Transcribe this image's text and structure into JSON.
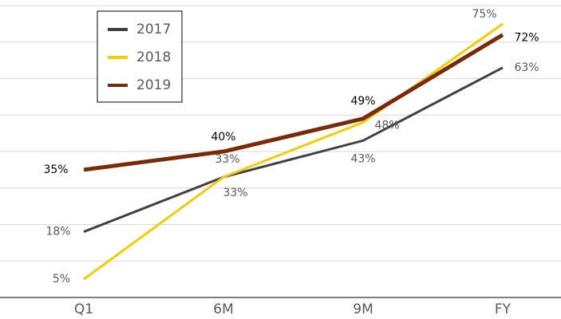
{
  "chart_data": {
    "type": "line",
    "categories": [
      "Q1",
      "6M",
      "9M",
      "FY"
    ],
    "ylim": [
      0,
      80
    ],
    "yticks": [
      0,
      10,
      20,
      30,
      40,
      50,
      60,
      70,
      80
    ],
    "grid": true,
    "series": [
      {
        "name": "2017",
        "color": "#404040",
        "values": [
          18,
          33,
          43,
          63
        ],
        "value_labels": [
          "18%",
          "33%",
          "43%",
          "63%"
        ]
      },
      {
        "name": "2018",
        "color": "#f5cd00",
        "values": [
          5,
          33,
          48,
          75
        ],
        "value_labels": [
          "5%",
          "33%",
          "48%",
          "75%"
        ]
      },
      {
        "name": "2019",
        "color": "#7a2a06",
        "values": [
          35,
          40,
          49,
          72
        ],
        "value_labels": [
          "35%",
          "40%",
          "49%",
          "72%"
        ]
      }
    ]
  }
}
